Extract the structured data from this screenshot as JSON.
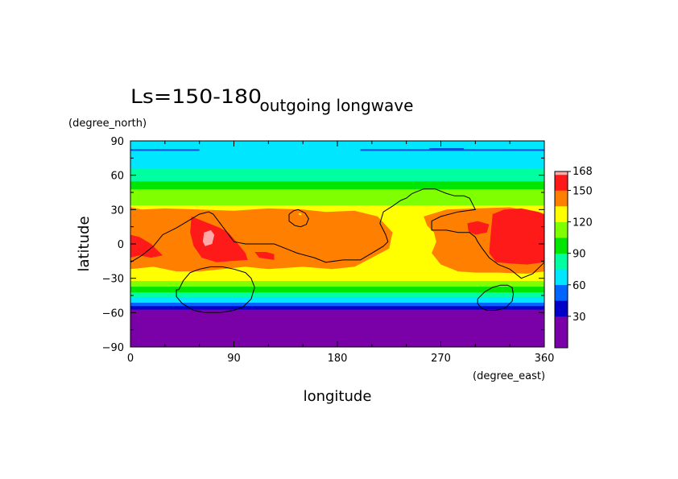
{
  "chart_data": {
    "type": "heatmap",
    "title_left": "Ls=150-180",
    "title": "outgoing longwave",
    "xlabel": "longitude",
    "ylabel": "latitude",
    "x_units": "(degree_east)",
    "y_units": "(degree_north)",
    "xlim": [
      0,
      360
    ],
    "ylim": [
      -90,
      90
    ],
    "x_ticks": [
      "0",
      "90",
      "180",
      "270",
      "360"
    ],
    "y_ticks": [
      "90",
      "60",
      "30",
      "0",
      "−30",
      "−60",
      "−90"
    ],
    "colorbar": {
      "tick_labels": [
        "168",
        "150",
        "120",
        "90",
        "60",
        "30"
      ],
      "levels": [
        {
          "min": 0,
          "max": 15,
          "color": "#7a00a8"
        },
        {
          "min": 15,
          "max": 30,
          "color": "#7a00a8"
        },
        {
          "min": 30,
          "max": 45,
          "color": "#0000c8"
        },
        {
          "min": 45,
          "max": 60,
          "color": "#0064ff"
        },
        {
          "min": 60,
          "max": 75,
          "color": "#00e6ff"
        },
        {
          "min": 75,
          "max": 90,
          "color": "#00ffa0"
        },
        {
          "min": 90,
          "max": 105,
          "color": "#00e600"
        },
        {
          "min": 105,
          "max": 120,
          "color": "#80ff00"
        },
        {
          "min": 120,
          "max": 135,
          "color": "#ffff00"
        },
        {
          "min": 135,
          "max": 150,
          "color": "#ff8000"
        },
        {
          "min": 150,
          "max": 165,
          "color": "#ff1a1a"
        },
        {
          "min": 165,
          "max": 168,
          "color": "#ffaaaa"
        }
      ]
    },
    "latitude_bands": [
      {
        "lat_min": -90,
        "lat_max": -57,
        "value": 15
      },
      {
        "lat_min": -57,
        "lat_max": -54,
        "value": 40
      },
      {
        "lat_min": -54,
        "lat_max": -51,
        "value": 55
      },
      {
        "lat_min": -51,
        "lat_max": -46,
        "value": 68
      },
      {
        "lat_min": -46,
        "lat_max": -42,
        "value": 82
      },
      {
        "lat_min": -42,
        "lat_max": -37,
        "value": 98
      },
      {
        "lat_min": -37,
        "lat_max": -32,
        "value": 112
      },
      {
        "lat_min": -32,
        "lat_max": 34,
        "value": 128
      },
      {
        "lat_min": 34,
        "lat_max": 48,
        "value": 112
      },
      {
        "lat_min": 48,
        "lat_max": 55,
        "value": 98
      },
      {
        "lat_min": 55,
        "lat_max": 66,
        "value": 82
      },
      {
        "lat_min": 66,
        "lat_max": 82,
        "value": 68
      },
      {
        "lat_min": 82,
        "lat_max": 90,
        "value": 60
      }
    ],
    "regions": [
      {
        "level": 142,
        "lon": [
          0,
          10,
          30,
          60,
          90,
          120,
          150,
          170,
          195,
          215,
          228,
          225,
          210,
          195,
          175,
          150,
          120,
          100,
          80,
          60,
          40,
          20,
          0
        ],
        "lat": [
          32,
          30,
          31,
          30,
          29,
          31,
          30,
          28,
          29,
          24,
          10,
          -4,
          -12,
          -20,
          -22,
          -20,
          -22,
          -20,
          -22,
          -24,
          -24,
          -20,
          -22
        ]
      },
      {
        "level": 142,
        "lon": [
          255,
          275,
          300,
          330,
          350,
          360,
          360,
          345,
          320,
          300,
          285,
          270,
          262,
          266,
          264,
          258,
          255
        ],
        "lat": [
          24,
          30,
          31,
          32,
          28,
          26,
          -24,
          -26,
          -25,
          -25,
          -24,
          -18,
          -8,
          2,
          10,
          16,
          24
        ]
      },
      {
        "level": 158,
        "lon": [
          53,
          58,
          68,
          78,
          85,
          92,
          100,
          102,
          88,
          75,
          62,
          55,
          52,
          53
        ],
        "lat": [
          24,
          22,
          18,
          14,
          10,
          2,
          -8,
          -14,
          -15,
          -16,
          -12,
          -2,
          10,
          24
        ]
      },
      {
        "level": 158,
        "lon": [
          0,
          8,
          18,
          28,
          18,
          8,
          0
        ],
        "lat": [
          8,
          6,
          0,
          -10,
          -12,
          -10,
          -12
        ]
      },
      {
        "level": 158,
        "lon": [
          108,
          118,
          125,
          125,
          112,
          108
        ],
        "lat": [
          -7,
          -7,
          -9,
          -14,
          -12,
          -7
        ]
      },
      {
        "level": 158,
        "lon": [
          315,
          325,
          340,
          355,
          360,
          360,
          345,
          330,
          318,
          312,
          313,
          315
        ],
        "lat": [
          26,
          30,
          31,
          28,
          26,
          -16,
          -18,
          -17,
          -16,
          -8,
          5,
          26
        ]
      },
      {
        "level": 158,
        "lon": [
          293,
          302,
          312,
          310,
          300,
          294,
          293
        ],
        "lat": [
          18,
          20,
          17,
          10,
          8,
          11,
          18
        ]
      },
      {
        "level": 166,
        "lon": [
          64,
          70,
          73,
          71,
          65,
          63,
          64
        ],
        "lat": [
          10,
          12,
          8,
          0,
          -2,
          2,
          10
        ]
      },
      {
        "level": 128,
        "lon": [
          147,
          149,
          148,
          146,
          147
        ],
        "lat": [
          27,
          26,
          25,
          26,
          27
        ]
      }
    ],
    "dark_lines": [
      {
        "lon": [
          0,
          60
        ],
        "lat": [
          82,
          82
        ]
      },
      {
        "lon": [
          200,
          360
        ],
        "lat": [
          82,
          82
        ]
      },
      {
        "lon": [
          260,
          290
        ],
        "lat": [
          83,
          83
        ]
      }
    ],
    "contours": [
      {
        "lon": [
          0,
          10,
          20,
          28,
          40,
          50,
          60,
          68,
          72,
          78,
          90,
          100,
          110,
          125,
          135,
          145,
          160,
          170,
          185,
          200,
          210,
          220,
          224,
          222,
          217,
          220,
          228,
          235,
          240,
          245,
          255,
          265,
          275,
          282,
          290,
          295,
          300,
          285,
          270,
          262,
          262,
          266,
          275,
          285,
          295,
          300,
          302,
          306,
          312,
          320,
          330,
          340,
          350,
          360
        ],
        "lat": [
          -16,
          -10,
          -2,
          8,
          14,
          20,
          26,
          28,
          26,
          18,
          2,
          0,
          0,
          0,
          -4,
          -8,
          -12,
          -16,
          -14,
          -14,
          -8,
          -2,
          2,
          8,
          18,
          28,
          33,
          38,
          40,
          44,
          48,
          48,
          44,
          42,
          42,
          40,
          30,
          28,
          24,
          20,
          12,
          12,
          12,
          10,
          10,
          6,
          2,
          -4,
          -12,
          -18,
          -22,
          -30,
          -26,
          -16
        ]
      },
      {
        "lon": [
          138,
          142,
          146,
          148,
          152,
          155,
          153,
          148,
          143,
          138,
          138
        ],
        "lat": [
          26,
          29,
          30,
          29,
          27,
          22,
          17,
          15,
          16,
          20,
          26
        ]
      },
      {
        "lon": [
          42,
          46,
          52,
          60,
          70,
          80,
          90,
          100,
          105,
          108,
          105,
          98,
          90,
          78,
          65,
          55,
          45,
          40,
          40,
          42
        ],
        "lat": [
          -40,
          -32,
          -25,
          -22,
          -20,
          -20,
          -22,
          -25,
          -30,
          -38,
          -48,
          -55,
          -58,
          -60,
          -60,
          -58,
          -52,
          -46,
          -40,
          -40
        ]
      },
      {
        "lon": [
          302,
          308,
          315,
          322,
          328,
          332,
          333,
          332,
          326,
          318,
          310,
          305,
          302,
          302
        ],
        "lat": [
          -48,
          -42,
          -38,
          -36,
          -36,
          -38,
          -44,
          -50,
          -56,
          -58,
          -58,
          -56,
          -52,
          -48
        ]
      }
    ]
  }
}
